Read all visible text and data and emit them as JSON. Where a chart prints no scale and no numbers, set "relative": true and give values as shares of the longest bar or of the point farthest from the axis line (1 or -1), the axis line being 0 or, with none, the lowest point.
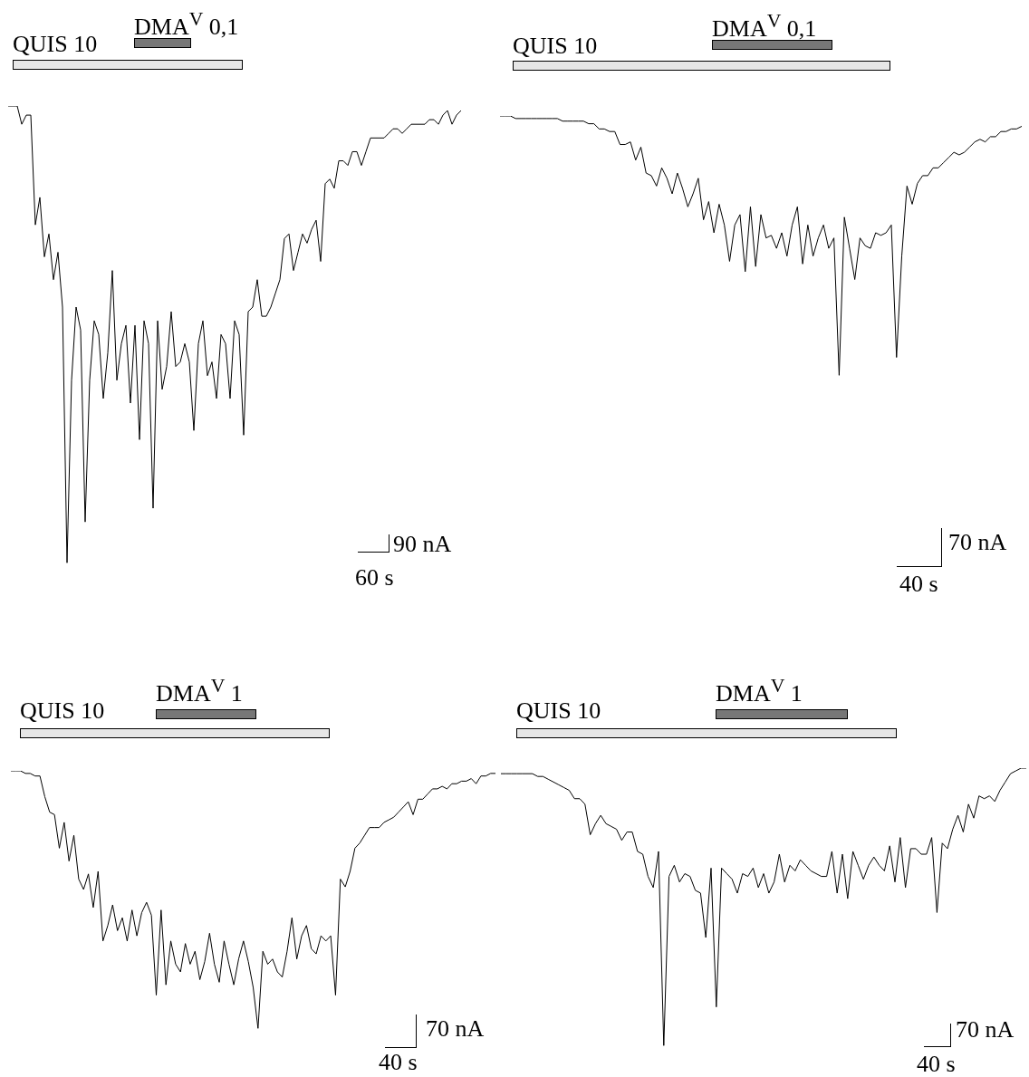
{
  "chart_data": [
    {
      "type": "line",
      "relative": true,
      "color": "#000000",
      "categories": [
        null,
        null,
        null,
        null,
        null,
        null,
        null,
        null,
        null,
        null,
        null,
        null,
        null,
        null,
        null,
        null,
        null,
        null,
        null,
        null,
        null,
        null,
        null,
        null,
        null,
        null,
        null,
        null,
        null,
        null,
        null,
        null,
        null,
        null,
        null,
        null,
        null,
        null,
        null,
        null,
        null,
        null,
        null,
        null,
        null,
        null,
        null,
        null,
        null,
        null,
        null,
        null,
        null,
        null,
        null,
        null,
        null,
        null,
        null,
        null,
        null,
        null,
        null,
        null,
        null,
        null,
        null,
        null,
        null,
        null,
        null,
        null,
        null,
        null,
        null,
        null,
        null,
        null,
        null,
        null,
        null,
        null,
        null,
        null,
        null,
        null,
        null,
        null,
        null,
        null,
        null,
        null,
        null,
        null,
        null,
        null,
        null,
        null,
        null,
        null,
        null
      ],
      "values": [
        1.0,
        1.0,
        1.0,
        0.96,
        0.98,
        0.98,
        0.74,
        0.8,
        0.67,
        0.72,
        0.62,
        0.68,
        0.56,
        0.0,
        0.4,
        0.56,
        0.51,
        0.09,
        0.4,
        0.53,
        0.5,
        0.36,
        0.46,
        0.64,
        0.4,
        0.48,
        0.52,
        0.35,
        0.52,
        0.27,
        0.53,
        0.48,
        0.12,
        0.53,
        0.38,
        0.43,
        0.55,
        0.43,
        0.44,
        0.48,
        0.44,
        0.29,
        0.48,
        0.53,
        0.41,
        0.44,
        0.36,
        0.5,
        0.48,
        0.36,
        0.53,
        0.5,
        0.28,
        0.55,
        0.56,
        0.62,
        0.54,
        0.54,
        0.56,
        0.59,
        0.62,
        0.71,
        0.72,
        0.64,
        0.68,
        0.72,
        0.7,
        0.73,
        0.75,
        0.66,
        0.83,
        0.84,
        0.82,
        0.88,
        0.88,
        0.87,
        0.9,
        0.9,
        0.87,
        0.9,
        0.93,
        0.93,
        0.93,
        0.93,
        0.94,
        0.95,
        0.95,
        0.94,
        0.95,
        0.96,
        0.96,
        0.96,
        0.96,
        0.97,
        0.97,
        0.96,
        0.98,
        0.99,
        0.96,
        0.98,
        0.99
      ],
      "annotations": [
        "QUIS 10",
        "DMA$^{V}$ 0,1",
        "90 nA",
        "60 s"
      ]
    },
    {
      "type": "line",
      "relative": true,
      "color": "#000000",
      "categories": [
        null,
        null,
        null,
        null,
        null,
        null,
        null,
        null,
        null,
        null,
        null,
        null,
        null,
        null,
        null,
        null,
        null,
        null,
        null,
        null,
        null,
        null,
        null,
        null,
        null,
        null,
        null,
        null,
        null,
        null,
        null,
        null,
        null,
        null,
        null,
        null,
        null,
        null,
        null,
        null,
        null,
        null,
        null,
        null,
        null,
        null,
        null,
        null,
        null,
        null,
        null,
        null,
        null,
        null,
        null,
        null,
        null,
        null,
        null,
        null,
        null,
        null,
        null,
        null,
        null,
        null,
        null,
        null,
        null,
        null,
        null,
        null,
        null,
        null,
        null,
        null,
        null,
        null,
        null,
        null,
        null,
        null,
        null,
        null,
        null,
        null,
        null,
        null,
        null,
        null,
        null,
        null,
        null,
        null,
        null,
        null,
        null,
        null,
        null,
        null,
        null
      ],
      "values": [
        1.0,
        1.0,
        1.0,
        0.99,
        0.99,
        0.99,
        0.99,
        0.99,
        0.99,
        0.99,
        0.99,
        0.99,
        0.98,
        0.98,
        0.98,
        0.98,
        0.98,
        0.97,
        0.97,
        0.95,
        0.95,
        0.94,
        0.94,
        0.89,
        0.89,
        0.9,
        0.83,
        0.88,
        0.78,
        0.77,
        0.73,
        0.8,
        0.76,
        0.7,
        0.78,
        0.72,
        0.65,
        0.7,
        0.76,
        0.6,
        0.67,
        0.55,
        0.66,
        0.58,
        0.44,
        0.58,
        0.62,
        0.4,
        0.65,
        0.42,
        0.62,
        0.53,
        0.54,
        0.49,
        0.55,
        0.46,
        0.58,
        0.65,
        0.43,
        0.58,
        0.46,
        0.53,
        0.58,
        0.49,
        0.53,
        0.0,
        0.61,
        0.49,
        0.37,
        0.53,
        0.5,
        0.49,
        0.55,
        0.54,
        0.55,
        0.58,
        0.07,
        0.46,
        0.73,
        0.66,
        0.74,
        0.77,
        0.77,
        0.8,
        0.8,
        0.82,
        0.84,
        0.86,
        0.85,
        0.86,
        0.88,
        0.9,
        0.91,
        0.9,
        0.92,
        0.92,
        0.94,
        0.94,
        0.95,
        0.95,
        0.96
      ],
      "annotations": [
        "QUIS 10",
        "DMA$^{V}$ 0,1",
        "70 nA",
        "40 s"
      ]
    },
    {
      "type": "line",
      "relative": true,
      "color": "#000000",
      "categories": [
        null,
        null,
        null,
        null,
        null,
        null,
        null,
        null,
        null,
        null,
        null,
        null,
        null,
        null,
        null,
        null,
        null,
        null,
        null,
        null,
        null,
        null,
        null,
        null,
        null,
        null,
        null,
        null,
        null,
        null,
        null,
        null,
        null,
        null,
        null,
        null,
        null,
        null,
        null,
        null,
        null,
        null,
        null,
        null,
        null,
        null,
        null,
        null,
        null,
        null,
        null,
        null,
        null,
        null,
        null,
        null,
        null,
        null,
        null,
        null,
        null,
        null,
        null,
        null,
        null,
        null,
        null,
        null,
        null,
        null,
        null,
        null,
        null,
        null,
        null,
        null,
        null,
        null,
        null,
        null,
        null,
        null,
        null,
        null,
        null,
        null,
        null,
        null,
        null,
        null,
        null,
        null,
        null,
        null,
        null,
        null,
        null,
        null,
        null,
        null,
        null
      ],
      "values": [
        1.0,
        1.0,
        1.0,
        0.99,
        0.99,
        0.98,
        0.98,
        0.9,
        0.84,
        0.83,
        0.7,
        0.8,
        0.65,
        0.75,
        0.58,
        0.54,
        0.6,
        0.47,
        0.61,
        0.34,
        0.4,
        0.48,
        0.38,
        0.43,
        0.34,
        0.46,
        0.36,
        0.45,
        0.49,
        0.44,
        0.13,
        0.46,
        0.17,
        0.34,
        0.25,
        0.22,
        0.33,
        0.25,
        0.3,
        0.19,
        0.26,
        0.37,
        0.25,
        0.18,
        0.34,
        0.25,
        0.17,
        0.27,
        0.34,
        0.26,
        0.16,
        0.0,
        0.3,
        0.25,
        0.27,
        0.22,
        0.2,
        0.3,
        0.43,
        0.27,
        0.36,
        0.4,
        0.31,
        0.29,
        0.36,
        0.34,
        0.36,
        0.13,
        0.58,
        0.55,
        0.61,
        0.7,
        0.72,
        0.75,
        0.78,
        0.78,
        0.78,
        0.8,
        0.81,
        0.82,
        0.84,
        0.86,
        0.88,
        0.83,
        0.89,
        0.89,
        0.91,
        0.93,
        0.93,
        0.94,
        0.93,
        0.95,
        0.95,
        0.96,
        0.96,
        0.97,
        0.95,
        0.98,
        0.98,
        0.99,
        0.99
      ],
      "annotations": [
        "QUIS 10",
        "DMA$^{V}$ 1",
        "70 nA",
        "40 s"
      ]
    },
    {
      "type": "line",
      "relative": true,
      "color": "#000000",
      "categories": [
        null,
        null,
        null,
        null,
        null,
        null,
        null,
        null,
        null,
        null,
        null,
        null,
        null,
        null,
        null,
        null,
        null,
        null,
        null,
        null,
        null,
        null,
        null,
        null,
        null,
        null,
        null,
        null,
        null,
        null,
        null,
        null,
        null,
        null,
        null,
        null,
        null,
        null,
        null,
        null,
        null,
        null,
        null,
        null,
        null,
        null,
        null,
        null,
        null,
        null,
        null,
        null,
        null,
        null,
        null,
        null,
        null,
        null,
        null,
        null,
        null,
        null,
        null,
        null,
        null,
        null,
        null,
        null,
        null,
        null,
        null,
        null,
        null,
        null,
        null,
        null,
        null,
        null,
        null,
        null,
        null,
        null,
        null,
        null,
        null,
        null,
        null,
        null,
        null,
        null,
        null,
        null,
        null,
        null,
        null,
        null,
        null,
        null,
        null,
        null,
        null
      ],
      "values": [
        0.98,
        0.98,
        0.98,
        0.98,
        0.98,
        0.98,
        0.98,
        0.97,
        0.97,
        0.96,
        0.95,
        0.94,
        0.93,
        0.92,
        0.89,
        0.89,
        0.87,
        0.76,
        0.8,
        0.83,
        0.8,
        0.79,
        0.78,
        0.74,
        0.77,
        0.77,
        0.7,
        0.69,
        0.61,
        0.57,
        0.7,
        0.0,
        0.61,
        0.65,
        0.59,
        0.62,
        0.61,
        0.56,
        0.55,
        0.39,
        0.64,
        0.14,
        0.64,
        0.62,
        0.6,
        0.55,
        0.62,
        0.61,
        0.64,
        0.57,
        0.62,
        0.55,
        0.59,
        0.69,
        0.59,
        0.65,
        0.63,
        0.67,
        0.65,
        0.63,
        0.62,
        0.61,
        0.61,
        0.7,
        0.55,
        0.69,
        0.53,
        0.7,
        0.65,
        0.6,
        0.65,
        0.68,
        0.65,
        0.63,
        0.72,
        0.59,
        0.75,
        0.57,
        0.71,
        0.71,
        0.69,
        0.69,
        0.75,
        0.48,
        0.73,
        0.71,
        0.78,
        0.83,
        0.77,
        0.87,
        0.82,
        0.9,
        0.89,
        0.9,
        0.88,
        0.92,
        0.95,
        0.98,
        0.99,
        1.0,
        1.0
      ],
      "annotations": [
        "QUIS 10",
        "DMA$^{V}$ 1",
        "70 nA",
        "40 s"
      ]
    }
  ]
}
